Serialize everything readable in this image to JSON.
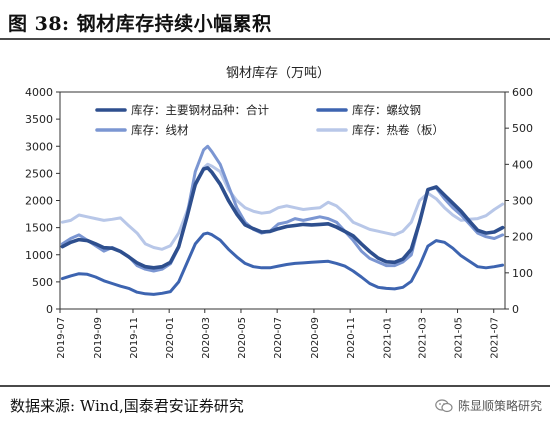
{
  "figure": {
    "title": "图 38:  钢材库存持续小幅累积",
    "source": "数据来源:  Wind,国泰君安证券研究",
    "watermark": "陈显顺策略研究"
  },
  "chart_data": {
    "type": "line",
    "title": "钢材库存（万吨）",
    "x": [
      "2019-07-05",
      "2019-07-19",
      "2019-08-02",
      "2019-08-16",
      "2019-08-30",
      "2019-09-13",
      "2019-09-27",
      "2019-10-11",
      "2019-10-25",
      "2019-11-08",
      "2019-11-22",
      "2019-12-06",
      "2019-12-20",
      "2020-01-03",
      "2020-01-17",
      "2020-01-31",
      "2020-02-14",
      "2020-02-28",
      "2020-03-06",
      "2020-03-13",
      "2020-03-27",
      "2020-04-10",
      "2020-04-24",
      "2020-05-08",
      "2020-05-22",
      "2020-06-05",
      "2020-06-19",
      "2020-07-03",
      "2020-07-17",
      "2020-07-31",
      "2020-08-14",
      "2020-08-28",
      "2020-09-11",
      "2020-09-25",
      "2020-10-09",
      "2020-10-23",
      "2020-11-06",
      "2020-11-20",
      "2020-12-04",
      "2020-12-18",
      "2021-01-01",
      "2021-01-15",
      "2021-01-29",
      "2021-02-12",
      "2021-02-26",
      "2021-03-12",
      "2021-03-26",
      "2021-04-09",
      "2021-04-23",
      "2021-05-07",
      "2021-05-21",
      "2021-06-04",
      "2021-06-18",
      "2021-07-02",
      "2021-07-16"
    ],
    "x_tick_labels": [
      "2019-07",
      "2019-09",
      "2019-11",
      "2020-01",
      "2020-03",
      "2020-05",
      "2020-07",
      "2020-09",
      "2020-11",
      "2021-01",
      "2021-03",
      "2021-05",
      "2021-07"
    ],
    "y_left": {
      "range": [
        0,
        4000
      ],
      "ticks": [
        "0",
        "500",
        "1000",
        "1500",
        "2000",
        "2500",
        "3000",
        "3500",
        "4000"
      ]
    },
    "y_right": {
      "range": [
        0,
        600
      ],
      "ticks": [
        "0",
        "100",
        "200",
        "300",
        "400",
        "500",
        "600"
      ]
    },
    "grid": false,
    "legend": "top-inside",
    "series": [
      {
        "name": "库存：主要钢材品种：合计",
        "axis": "left",
        "color": "#2e4f8e",
        "width": 3.6,
        "values": [
          1150,
          1230,
          1280,
          1260,
          1200,
          1130,
          1120,
          1060,
          960,
          850,
          780,
          760,
          780,
          860,
          1150,
          1700,
          2300,
          2580,
          2600,
          2520,
          2300,
          2000,
          1750,
          1550,
          1480,
          1420,
          1430,
          1480,
          1520,
          1540,
          1560,
          1550,
          1560,
          1570,
          1510,
          1430,
          1350,
          1200,
          1060,
          940,
          870,
          860,
          920,
          1100,
          1600,
          2200,
          2250,
          2100,
          1950,
          1800,
          1620,
          1450,
          1400,
          1420,
          1500
        ]
      },
      {
        "name": "库存：螺纹钢",
        "axis": "left",
        "color": "#3d64b0",
        "width": 3.0,
        "values": [
          560,
          610,
          650,
          640,
          590,
          520,
          470,
          420,
          380,
          310,
          280,
          270,
          290,
          320,
          500,
          850,
          1200,
          1380,
          1400,
          1370,
          1270,
          1100,
          960,
          840,
          780,
          760,
          760,
          790,
          820,
          840,
          850,
          860,
          870,
          880,
          840,
          790,
          700,
          590,
          470,
          400,
          380,
          370,
          400,
          510,
          800,
          1160,
          1260,
          1230,
          1120,
          980,
          880,
          780,
          760,
          780,
          810
        ]
      },
      {
        "name": "库存：线材",
        "axis": "right",
        "color": "#7b96d2",
        "width": 3.0,
        "values": [
          180,
          195,
          205,
          190,
          175,
          160,
          170,
          160,
          145,
          120,
          110,
          105,
          110,
          125,
          170,
          260,
          380,
          440,
          450,
          435,
          400,
          340,
          280,
          240,
          220,
          210,
          215,
          235,
          240,
          250,
          245,
          250,
          255,
          250,
          240,
          215,
          190,
          160,
          140,
          130,
          120,
          120,
          130,
          150,
          240,
          330,
          335,
          305,
          280,
          260,
          235,
          210,
          200,
          195,
          205
        ]
      },
      {
        "name": "库存：热卷（板）",
        "axis": "right",
        "color": "#b8c7e8",
        "width": 3.0,
        "values": [
          240,
          245,
          260,
          255,
          250,
          245,
          248,
          252,
          230,
          210,
          180,
          170,
          165,
          175,
          210,
          270,
          340,
          390,
          400,
          395,
          380,
          330,
          300,
          280,
          270,
          265,
          268,
          280,
          285,
          280,
          275,
          278,
          280,
          295,
          285,
          265,
          240,
          230,
          220,
          215,
          210,
          205,
          215,
          240,
          300,
          320,
          305,
          280,
          260,
          245,
          248,
          250,
          258,
          275,
          290
        ]
      }
    ]
  }
}
